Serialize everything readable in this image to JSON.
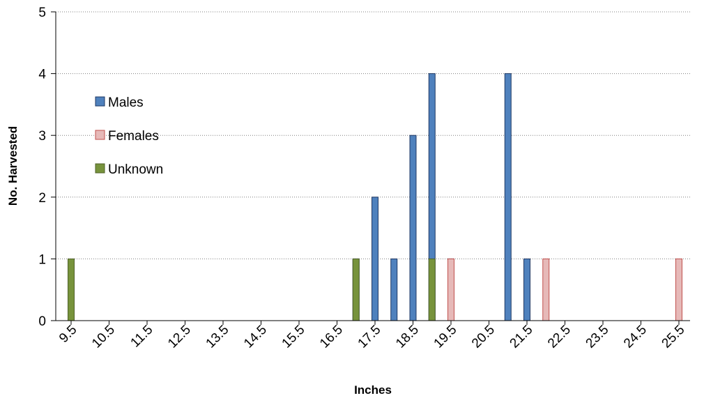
{
  "chart_data": {
    "type": "bar",
    "x_tick_labels": [
      "9.5",
      "10.5",
      "11.5",
      "12.5",
      "13.5",
      "14.5",
      "15.5",
      "16.5",
      "17.5",
      "18.5",
      "19.5",
      "20.5",
      "21.5",
      "22.5",
      "23.5",
      "24.5",
      "25.5"
    ],
    "y_tick_labels": [
      "0",
      "1",
      "2",
      "3",
      "4",
      "5"
    ],
    "xlabel": "Inches",
    "ylabel": "No. Harvested",
    "ylim": [
      0,
      5
    ],
    "xlim": [
      9.5,
      25.5
    ],
    "grid": "horizontal dotted",
    "legend_position": "left",
    "series": [
      {
        "name": "Males",
        "color": "#4f81bd",
        "border": "#1f3864",
        "points": [
          [
            17.0,
            1
          ],
          [
            17.5,
            2
          ],
          [
            18.0,
            1
          ],
          [
            18.5,
            3
          ],
          [
            19.0,
            4
          ],
          [
            19.5,
            1
          ],
          [
            21.0,
            4
          ],
          [
            21.5,
            1
          ]
        ]
      },
      {
        "name": "Females",
        "color": "#e6b9b8",
        "border": "#c0504d",
        "points": [
          [
            19.5,
            1
          ],
          [
            22.0,
            1
          ],
          [
            25.5,
            1
          ]
        ]
      },
      {
        "name": "Unknown",
        "color": "#77933c",
        "border": "#4f6228",
        "points": [
          [
            9.5,
            1
          ],
          [
            17.0,
            1
          ],
          [
            19.0,
            1
          ]
        ]
      }
    ]
  }
}
